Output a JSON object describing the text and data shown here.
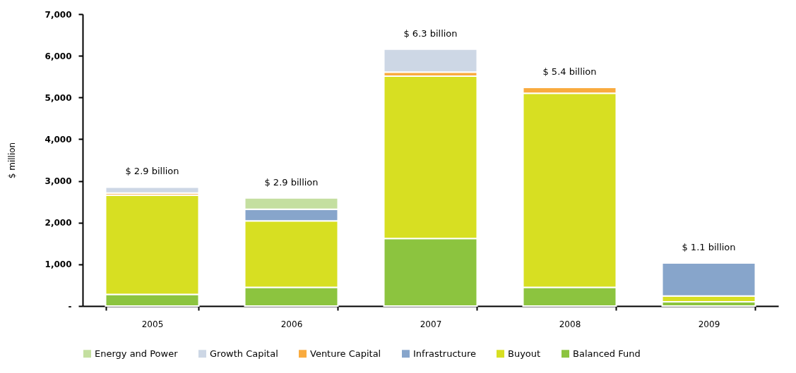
{
  "chart_data": {
    "type": "bar",
    "stacked": true,
    "ylabel": "$ million",
    "categories": [
      "2005",
      "2006",
      "2007",
      "2008",
      "2009"
    ],
    "series": [
      {
        "name": "Balanced Fund",
        "color": "#8cc43f",
        "values": [
          280,
          450,
          1620,
          450,
          100
        ]
      },
      {
        "name": "Buyout",
        "color": "#d7df22",
        "values": [
          2380,
          1590,
          3890,
          4650,
          140
        ]
      },
      {
        "name": "Infrastructure",
        "color": "#87a5cb",
        "values": [
          null,
          280,
          null,
          null,
          790
        ]
      },
      {
        "name": "Venture Capital",
        "color": "#f9ab3f",
        "values": [
          50,
          null,
          100,
          140,
          null
        ]
      },
      {
        "name": "Growth Capital",
        "color": "#cdd7e5",
        "values": [
          140,
          null,
          550,
          null,
          null
        ]
      },
      {
        "name": "Energy and Power",
        "color": "#c4dfa0",
        "values": [
          null,
          270,
          null,
          null,
          null
        ]
      }
    ],
    "totals": [
      "$ 2.9 billion",
      "$ 2.9 billion",
      "$ 6.3 billion",
      "$ 5.4 billion",
      "$ 1.1 billion"
    ],
    "ylim": [
      0,
      7000
    ],
    "yticks": [
      {
        "value": 0,
        "label": "-"
      },
      {
        "value": 1000,
        "label": "1,000"
      },
      {
        "value": 2000,
        "label": "2,000"
      },
      {
        "value": 3000,
        "label": "3,000"
      },
      {
        "value": 4000,
        "label": "4,000"
      },
      {
        "value": 5000,
        "label": "5,000"
      },
      {
        "value": 6000,
        "label": "6,000"
      },
      {
        "value": 7000,
        "label": "7,000"
      }
    ],
    "grid": false,
    "legend": "bottom"
  }
}
